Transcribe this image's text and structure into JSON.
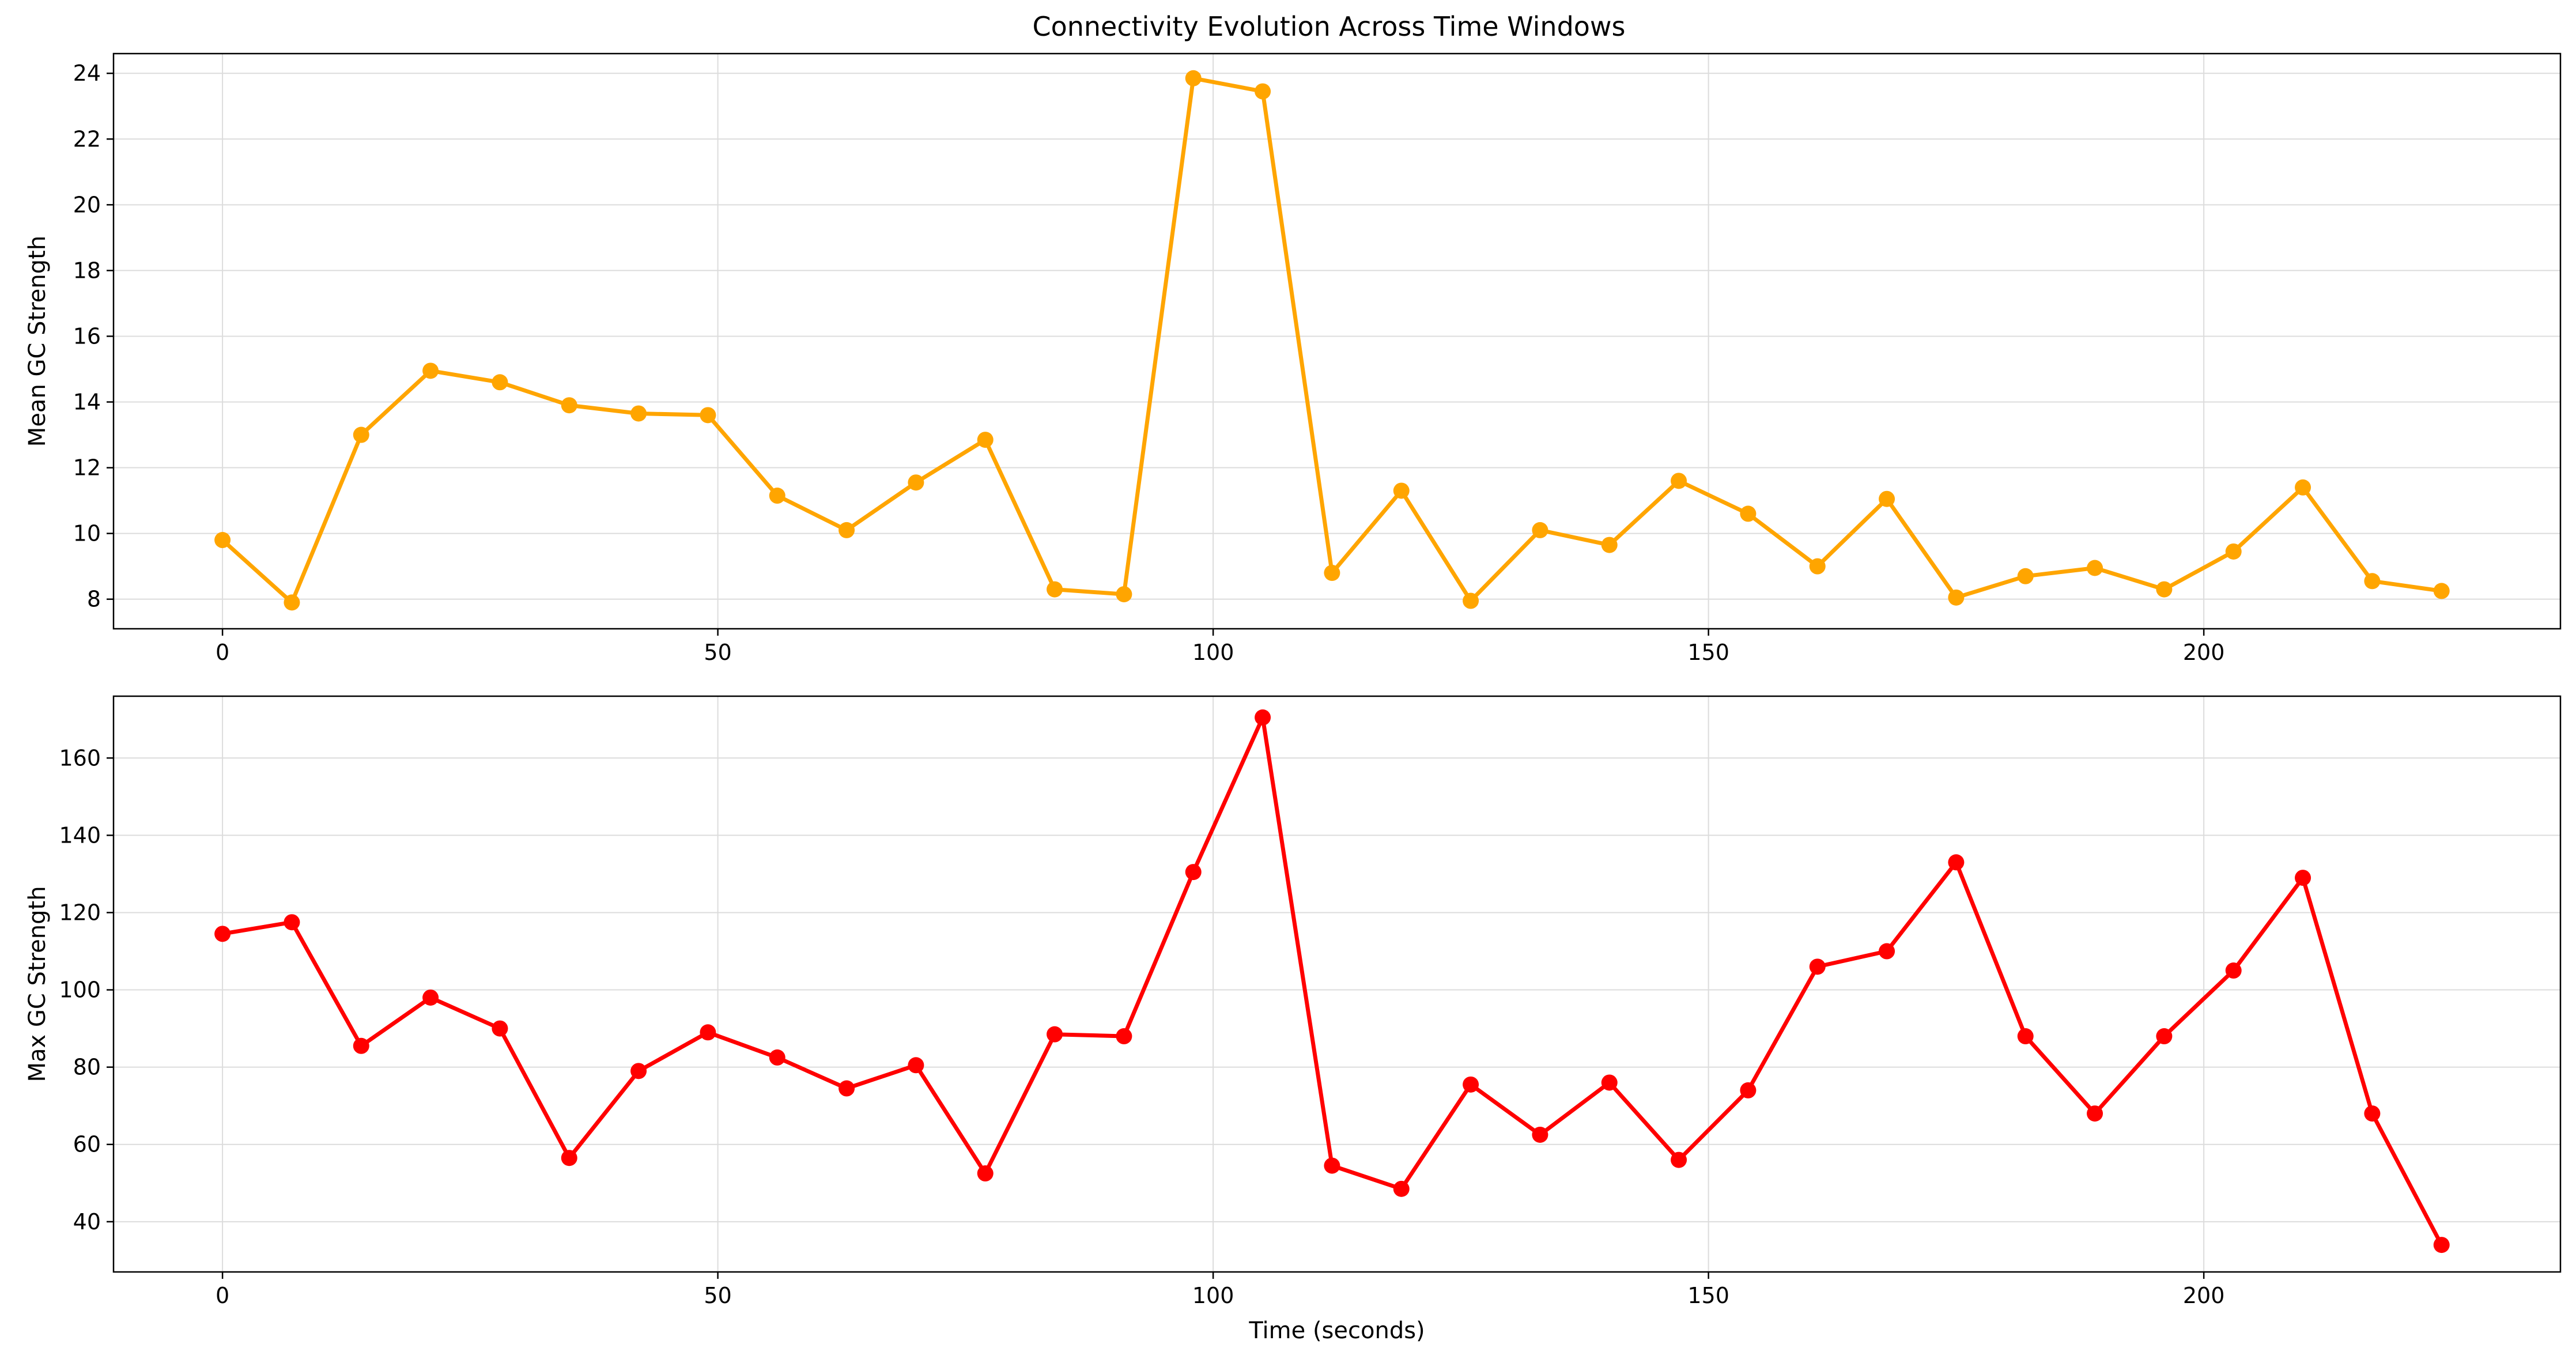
{
  "figure": {
    "title": "Connectivity Evolution Across Time Windows"
  },
  "chart_data": [
    {
      "type": "line",
      "title": "Connectivity Evolution Across Time Windows",
      "xlabel": "",
      "ylabel": "Mean GC Strength",
      "xlim": [
        -11,
        236
      ],
      "ylim": [
        7.1,
        24.6
      ],
      "xticks": [
        0,
        50,
        100,
        150,
        200
      ],
      "yticks": [
        8,
        10,
        12,
        14,
        16,
        18,
        20,
        22,
        24
      ],
      "grid": true,
      "color": "#ffa500",
      "x": [
        0,
        7,
        14,
        21,
        28,
        35,
        42,
        49,
        56,
        63,
        70,
        77,
        84,
        91,
        98,
        105,
        112,
        119,
        126,
        133,
        140,
        147,
        154,
        161,
        168,
        175,
        182,
        189,
        196,
        203,
        210,
        217,
        224
      ],
      "series": [
        {
          "values": [
            9.8,
            7.9,
            13.0,
            14.95,
            14.6,
            13.9,
            13.65,
            13.6,
            11.15,
            10.1,
            11.55,
            12.85,
            8.3,
            8.15,
            23.85,
            23.45,
            8.8,
            11.3,
            7.95,
            10.1,
            9.65,
            11.6,
            10.6,
            9.0,
            11.05,
            8.05,
            8.7,
            8.95,
            8.3,
            9.45,
            11.4,
            8.55,
            8.25
          ]
        }
      ]
    },
    {
      "type": "line",
      "title": "",
      "xlabel": "Time (seconds)",
      "ylabel": "Max GC Strength",
      "xlim": [
        -11,
        236
      ],
      "ylim": [
        27,
        176
      ],
      "xticks": [
        0,
        50,
        100,
        150,
        200
      ],
      "yticks": [
        40,
        60,
        80,
        100,
        120,
        140,
        160
      ],
      "grid": true,
      "color": "#ff0000",
      "x": [
        0,
        7,
        14,
        21,
        28,
        35,
        42,
        49,
        56,
        63,
        70,
        77,
        84,
        91,
        98,
        105,
        112,
        119,
        126,
        133,
        140,
        147,
        154,
        161,
        168,
        175,
        182,
        189,
        196,
        203,
        210,
        217,
        224
      ],
      "series": [
        {
          "values": [
            114.5,
            117.5,
            85.5,
            98.0,
            90.0,
            56.5,
            79.0,
            89.0,
            82.5,
            74.5,
            80.5,
            52.5,
            88.5,
            88.0,
            130.5,
            170.5,
            54.5,
            48.5,
            75.5,
            62.5,
            76.0,
            56.0,
            74.0,
            106.0,
            110.0,
            133.0,
            88.0,
            68.0,
            88.0,
            105.0,
            129.0,
            68.0,
            34.0
          ]
        }
      ]
    }
  ]
}
